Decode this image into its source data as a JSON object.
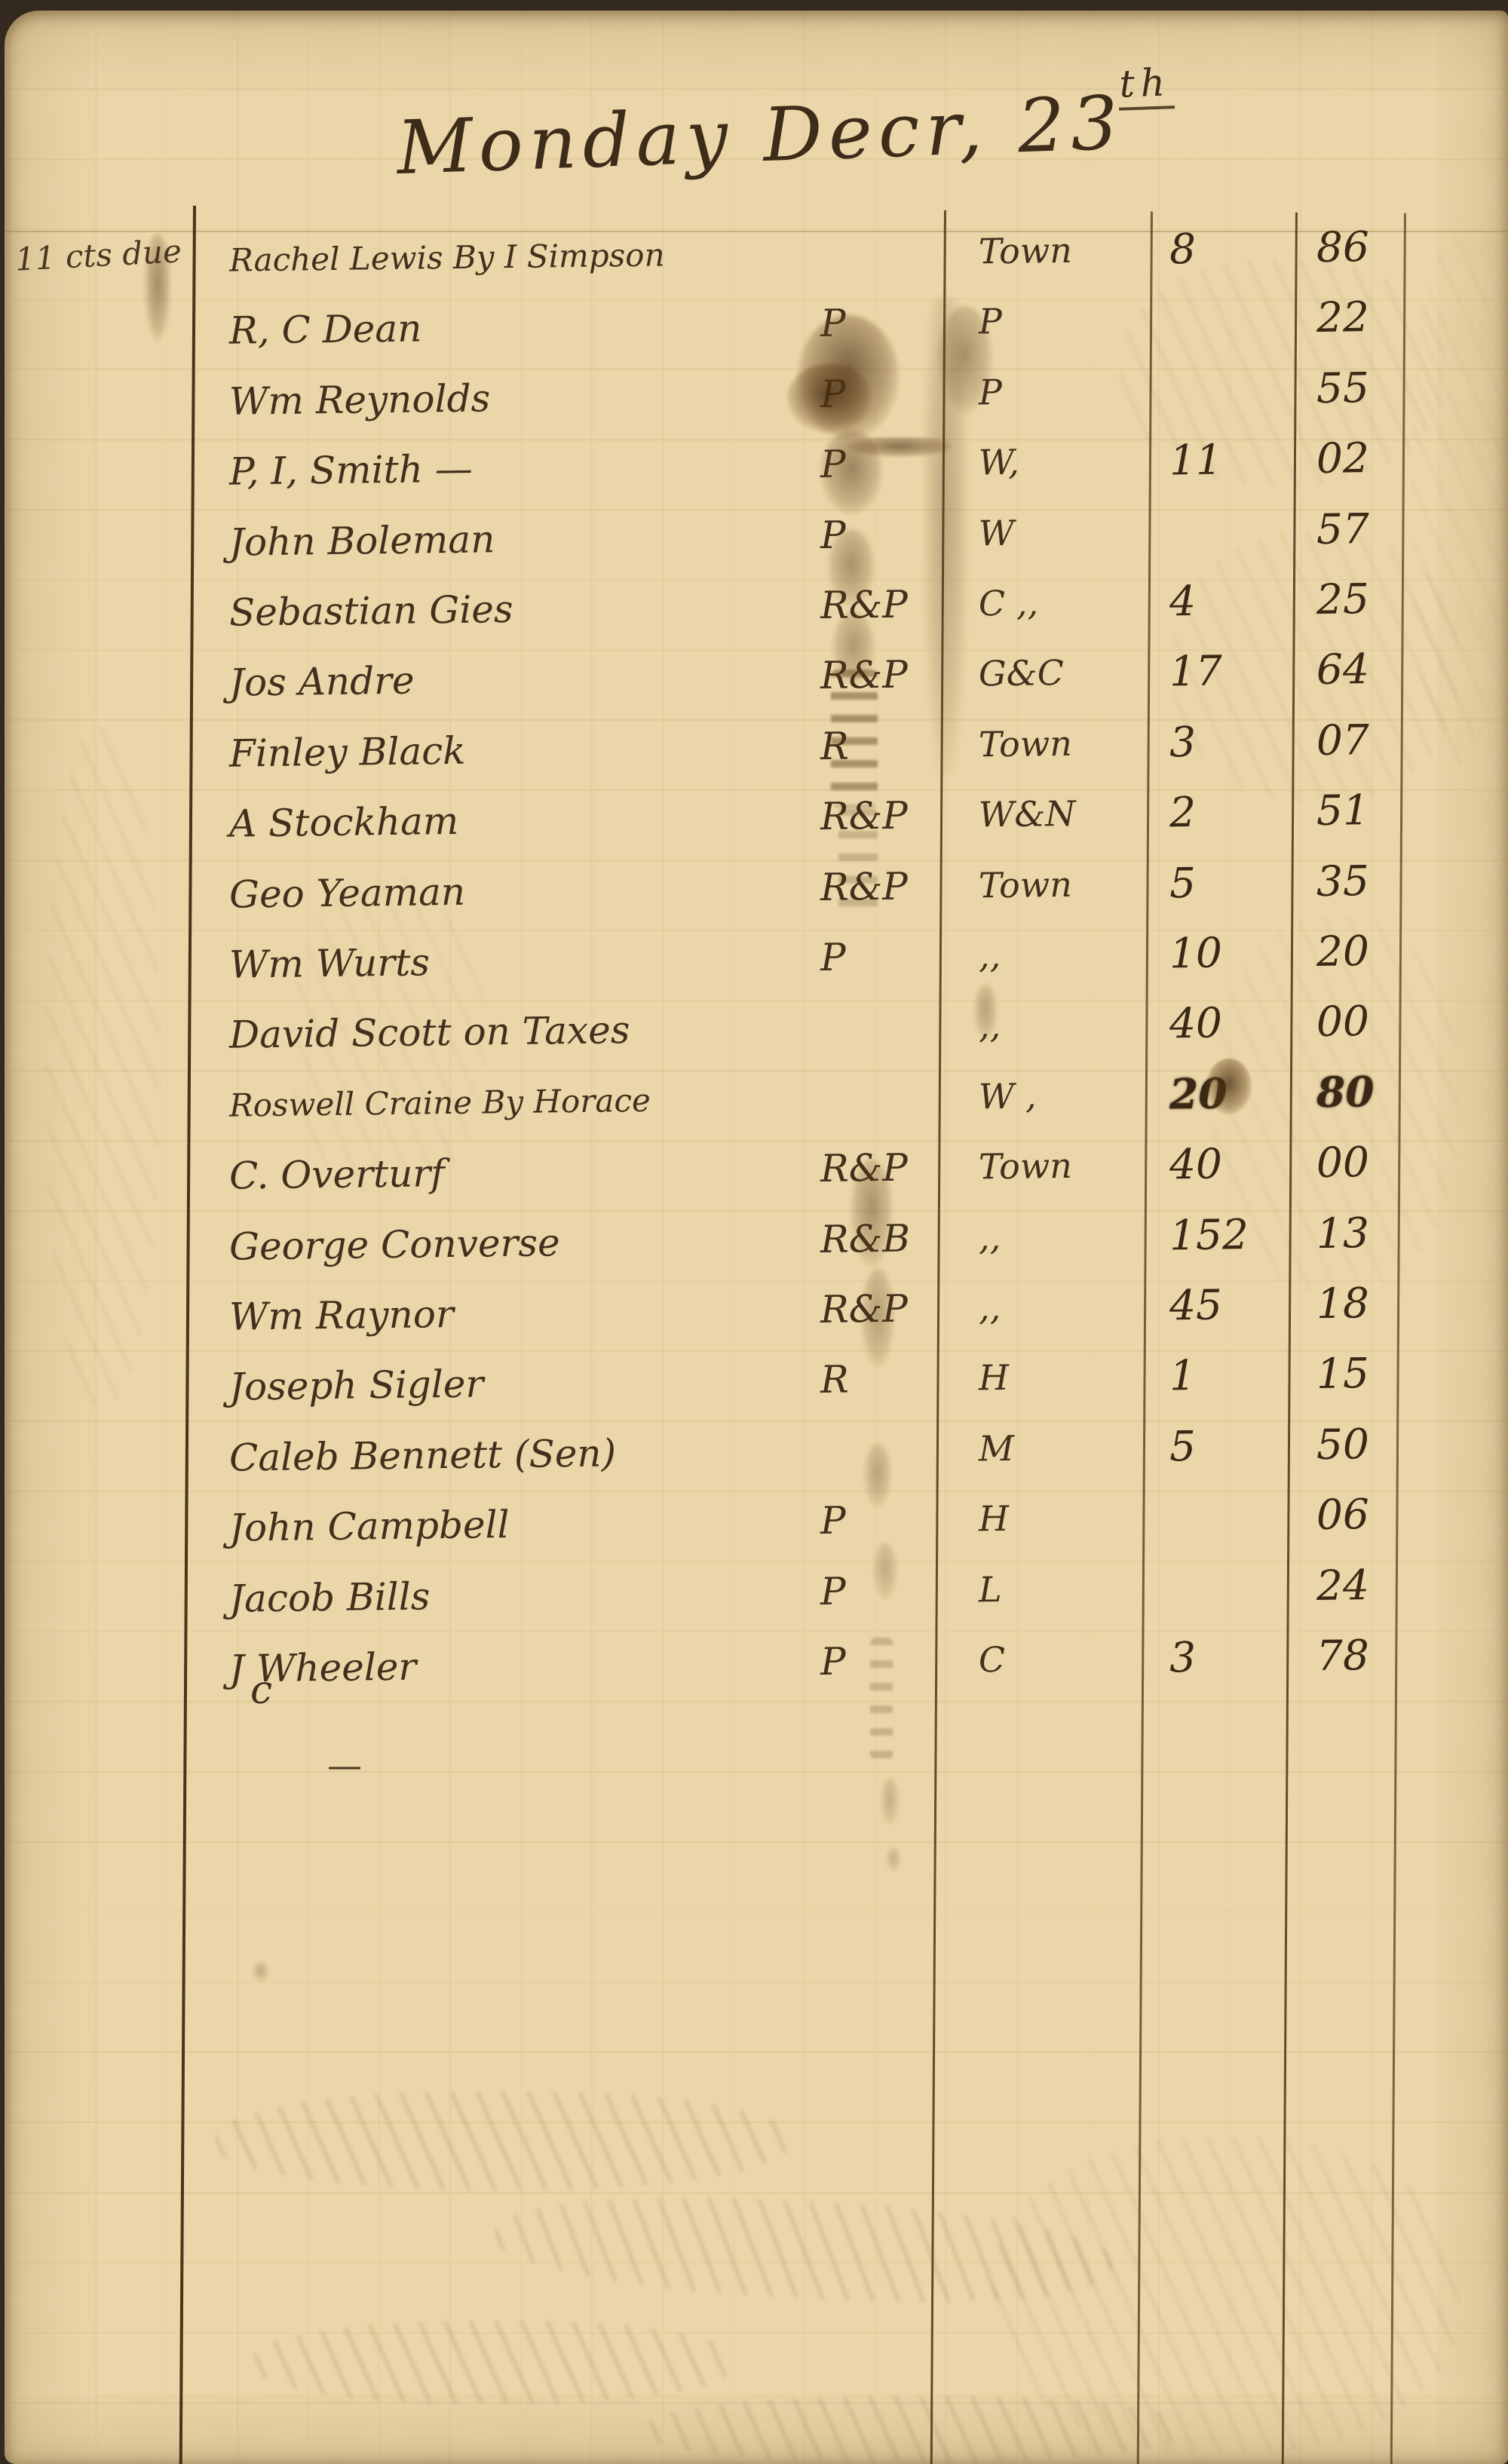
{
  "page": {
    "title": "Monday Decr, 23",
    "title_suffix": "th",
    "margin_note": "11 cts due",
    "stray_letter": "c",
    "stray_dash": "—"
  },
  "ledger": {
    "date": "Monday Decr, 23th",
    "columns": [
      "name",
      "place",
      "dollars",
      "cents"
    ],
    "rows": [
      {
        "name": "Rachel Lewis By I Simpson",
        "mark": "",
        "place": "Town",
        "dollars": "8",
        "cents": "86"
      },
      {
        "name": "R, C Dean",
        "mark": "P",
        "place": "P",
        "dollars": "",
        "cents": "22"
      },
      {
        "name": "Wm Reynolds",
        "mark": "P",
        "place": "P",
        "dollars": "",
        "cents": "55"
      },
      {
        "name": "P, I, Smith —",
        "mark": "P",
        "place": "W,",
        "dollars": "11",
        "cents": "02"
      },
      {
        "name": "John Boleman",
        "mark": "P",
        "place": "W",
        "dollars": "",
        "cents": "57"
      },
      {
        "name": "Sebastian Gies",
        "mark": "R&P",
        "place": "C ,,",
        "dollars": "4",
        "cents": "25"
      },
      {
        "name": "Jos Andre",
        "mark": "R&P",
        "place": "G&C",
        "dollars": "17",
        "cents": "64"
      },
      {
        "name": "Finley Black",
        "mark": "R",
        "place": "Town",
        "dollars": "3",
        "cents": "07"
      },
      {
        "name": "A Stockham",
        "mark": "R&P",
        "place": "W&N",
        "dollars": "2",
        "cents": "51"
      },
      {
        "name": "Geo Yeaman",
        "mark": "R&P",
        "place": "Town",
        "dollars": "5",
        "cents": "35"
      },
      {
        "name": "Wm Wurts",
        "mark": "P",
        "place": ",,",
        "dollars": "10",
        "cents": "20"
      },
      {
        "name": "David Scott on Taxes",
        "mark": "",
        "place": ",,",
        "dollars": "40",
        "cents": "00"
      },
      {
        "name": "Roswell Craine By Horace",
        "mark": "",
        "place": "W ,",
        "dollars": "20",
        "cents": "80",
        "blot": true
      },
      {
        "name": "C. Overturf",
        "mark": "R&P",
        "place": "Town",
        "dollars": "40",
        "cents": "00"
      },
      {
        "name": "George Converse",
        "mark": "R&B",
        "place": ",,",
        "dollars": "152",
        "cents": "13"
      },
      {
        "name": "Wm Raynor",
        "mark": "R&P",
        "place": ",,",
        "dollars": "45",
        "cents": "18"
      },
      {
        "name": "Joseph Sigler",
        "mark": "R",
        "place": "H",
        "dollars": "1",
        "cents": "15"
      },
      {
        "name": "Caleb Bennett (Sen)",
        "mark": "",
        "place": "M",
        "dollars": "5",
        "cents": "50"
      },
      {
        "name": "John Campbell",
        "mark": "P",
        "place": "H",
        "dollars": "",
        "cents": "06"
      },
      {
        "name": "Jacob Bills",
        "mark": "P",
        "place": "L",
        "dollars": "",
        "cents": "24"
      },
      {
        "name": "J Wheeler",
        "mark": "P",
        "place": "C",
        "dollars": "3",
        "cents": "78"
      }
    ]
  }
}
